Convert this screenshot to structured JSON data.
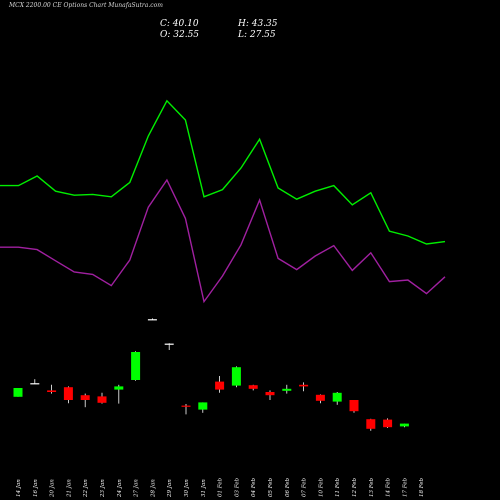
{
  "header": {
    "title": "MCX  2200.00  CE Options  Chart MunafaSutra.com",
    "close_label": "C: 40.10",
    "high_label": "H: 43.35",
    "open_label": "O: 32.55",
    "low_label": "L: 27.55"
  },
  "colors": {
    "background": "#000000",
    "bull": "#00ff00",
    "bear": "#ff0000",
    "neutral": "#ffffff",
    "upper_line": "#00ee00",
    "lower_line": "#a020a0",
    "label": "#ffffff"
  },
  "chart_data": {
    "type": "candlestick",
    "title": "MCX  2200.00  CE Options  Chart MunafaSutra.com",
    "x_labels": [
      "14 Jan",
      "16 Jan",
      "20 Jan",
      "21 Jan",
      "22 Jan",
      "23 Jan",
      "24 Jan",
      "27 Jan",
      "28 Jan",
      "29 Jan",
      "30 Jan",
      "31 Jan",
      "01 Feb",
      "03 Feb",
      "04 Feb",
      "05 Feb",
      "06 Feb",
      "07 Feb",
      "10 Feb",
      "11 Feb",
      "12 Feb",
      "13 Feb",
      "14 Feb",
      "17 Feb",
      "18 Feb"
    ],
    "candles": [
      {
        "open": 29.0,
        "high": 40.0,
        "low": 29.0,
        "close": 40.0
      },
      {
        "open": 46.0,
        "high": 51.0,
        "low": 45.0,
        "close": 46.0
      },
      {
        "open": 37.0,
        "high": 44.0,
        "low": 33.0,
        "close": 35.0
      },
      {
        "open": 41.0,
        "high": 42.0,
        "low": 21.0,
        "close": 25.0
      },
      {
        "open": 31.0,
        "high": 33.0,
        "low": 16.0,
        "close": 25.0
      },
      {
        "open": 29.5,
        "high": 34.0,
        "low": 20.5,
        "close": 21.5
      },
      {
        "open": 38.0,
        "high": 44.0,
        "low": 20.5,
        "close": 42.0
      },
      {
        "open": 50.0,
        "high": 86.0,
        "low": 49.0,
        "close": 85.0
      },
      {
        "open": 126.0,
        "high": 127.0,
        "low": 125.0,
        "close": 126.0
      },
      {
        "open": 95.5,
        "high": 96.0,
        "low": 87.5,
        "close": 95.5
      },
      {
        "open": 18.0,
        "high": 20.0,
        "low": 7.0,
        "close": 17.0
      },
      {
        "open": 13.0,
        "high": 22.0,
        "low": 9.0,
        "close": 22.0
      },
      {
        "open": 48.0,
        "high": 55.0,
        "low": 34.0,
        "close": 38.0
      },
      {
        "open": 43.0,
        "high": 67.0,
        "low": 41.0,
        "close": 66.0
      },
      {
        "open": 43.5,
        "high": 44.0,
        "low": 37.0,
        "close": 39.0
      },
      {
        "open": 35.0,
        "high": 37.0,
        "low": 25.0,
        "close": 31.0
      },
      {
        "open": 36.5,
        "high": 44.0,
        "low": 33.0,
        "close": 39.0
      },
      {
        "open": 44.0,
        "high": 47.0,
        "low": 36.0,
        "close": 42.0
      },
      {
        "open": 31.5,
        "high": 32.0,
        "low": 21.0,
        "close": 24.0
      },
      {
        "open": 23.0,
        "high": 35.0,
        "low": 19.0,
        "close": 34.0
      },
      {
        "open": 25.0,
        "high": 25.0,
        "low": 9.0,
        "close": 11.0
      },
      {
        "open": 1.0,
        "high": 1.5,
        "low": -13.5,
        "close": -11.0
      },
      {
        "open": 0.5,
        "high": 2.0,
        "low": -10.0,
        "close": -9.0
      },
      {
        "open": -8.0,
        "high": -4.5,
        "low": -9.0,
        "close": -4.5
      }
    ],
    "candle_slots": [
      0,
      1,
      2,
      3,
      4,
      5,
      6,
      7,
      8,
      9,
      10,
      11,
      12,
      13,
      14,
      15,
      16,
      17,
      18,
      19,
      20,
      21,
      22,
      23
    ],
    "upper_line": [
      293,
      293,
      305,
      286,
      281,
      282,
      279,
      297,
      355,
      399,
      375,
      279,
      288,
      315,
      351,
      290,
      276,
      286,
      293,
      269,
      284,
      236,
      230,
      220,
      223
    ],
    "lower_line": [
      216,
      216,
      213,
      199,
      185,
      182,
      168,
      200,
      266,
      300,
      252,
      148,
      180,
      219,
      275,
      202,
      188,
      205,
      218,
      187,
      209,
      173,
      175,
      158,
      179
    ],
    "y_range": [
      -50,
      450
    ]
  }
}
